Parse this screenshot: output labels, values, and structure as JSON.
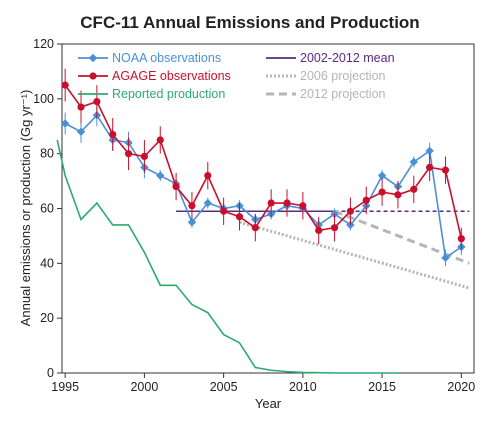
{
  "chart_data": {
    "type": "line",
    "title": "CFC-11 Annual Emissions and Production",
    "xlabel": "Year",
    "ylabel": "Annual emissions or production (Gg yr⁻¹)",
    "xlim": [
      1994.8,
      2020.8
    ],
    "ylim": [
      0,
      120
    ],
    "xticks": [
      1995,
      2000,
      2005,
      2010,
      2015,
      2020
    ],
    "yticks": [
      0,
      20,
      40,
      60,
      80,
      100,
      120
    ],
    "grid": false,
    "legend_position": "top",
    "series": [
      {
        "name": "NOAA observations",
        "color": "#4a90d9",
        "marker": "diamond",
        "error_bars": true,
        "x": [
          1995,
          1996,
          1997,
          1998,
          1999,
          2000,
          2001,
          2002,
          2003,
          2004,
          2005,
          2006,
          2007,
          2008,
          2009,
          2010,
          2011,
          2012,
          2013,
          2014,
          2015,
          2016,
          2017,
          2018,
          2019,
          2020
        ],
        "y": [
          91,
          88,
          94,
          85,
          84,
          75,
          72,
          69,
          55,
          62,
          60,
          61,
          56,
          58,
          61,
          60,
          54,
          58,
          54,
          61,
          72,
          68,
          77,
          81,
          42,
          46
        ],
        "errors": [
          4,
          4,
          4,
          4,
          4,
          4,
          2,
          2,
          2,
          2,
          2,
          2,
          2,
          2,
          2,
          2,
          2,
          2,
          2,
          2,
          2,
          2,
          2,
          3,
          3,
          3
        ]
      },
      {
        "name": "AGAGE observations",
        "color": "#c8102e",
        "marker": "circle",
        "error_bars": true,
        "x": [
          1995,
          1996,
          1997,
          1998,
          1999,
          2000,
          2001,
          2002,
          2003,
          2004,
          2005,
          2006,
          2007,
          2008,
          2009,
          2010,
          2011,
          2012,
          2013,
          2014,
          2015,
          2016,
          2017,
          2018,
          2019,
          2020
        ],
        "y": [
          105,
          97,
          99,
          87,
          80,
          79,
          85,
          68,
          61,
          72,
          59,
          57,
          53,
          62,
          62,
          61,
          52,
          53,
          59,
          63,
          66,
          65,
          67,
          75,
          74,
          49
        ],
        "errors": [
          6,
          6,
          6,
          6,
          6,
          6,
          5,
          5,
          5,
          5,
          5,
          5,
          5,
          5,
          5,
          5,
          5,
          5,
          5,
          5,
          5,
          5,
          5,
          5,
          5,
          4
        ]
      },
      {
        "name": "Reported production",
        "color": "#2eaa6e",
        "marker": "none",
        "x": [
          1994.5,
          1995,
          1996,
          1997,
          1998,
          1999,
          2000,
          2001,
          2002,
          2003,
          2004,
          2005,
          2006,
          2007,
          2008,
          2009,
          2010,
          2011,
          2012,
          2013,
          2014,
          2015,
          2016
        ],
        "y": [
          85,
          72,
          56,
          62,
          54,
          54,
          44,
          32,
          32,
          25,
          22,
          14,
          11,
          2,
          1,
          0.5,
          0.2,
          0.1,
          0,
          0,
          0,
          0,
          0
        ]
      },
      {
        "name": "2002-2012 mean",
        "color": "#5b2a86",
        "style": "solid-then-dashed",
        "x": [
          2002,
          2012,
          2012,
          2020.5
        ],
        "y": [
          59,
          59,
          59,
          59
        ]
      },
      {
        "name": "2006 projection",
        "color": "#b5b5b5",
        "style": "dotted",
        "x": [
          2006,
          2020.5
        ],
        "y": [
          55,
          31
        ]
      },
      {
        "name": "2012 projection",
        "color": "#b5b5b5",
        "style": "dashed",
        "x": [
          2012,
          2020.5
        ],
        "y": [
          59,
          40
        ]
      }
    ]
  }
}
